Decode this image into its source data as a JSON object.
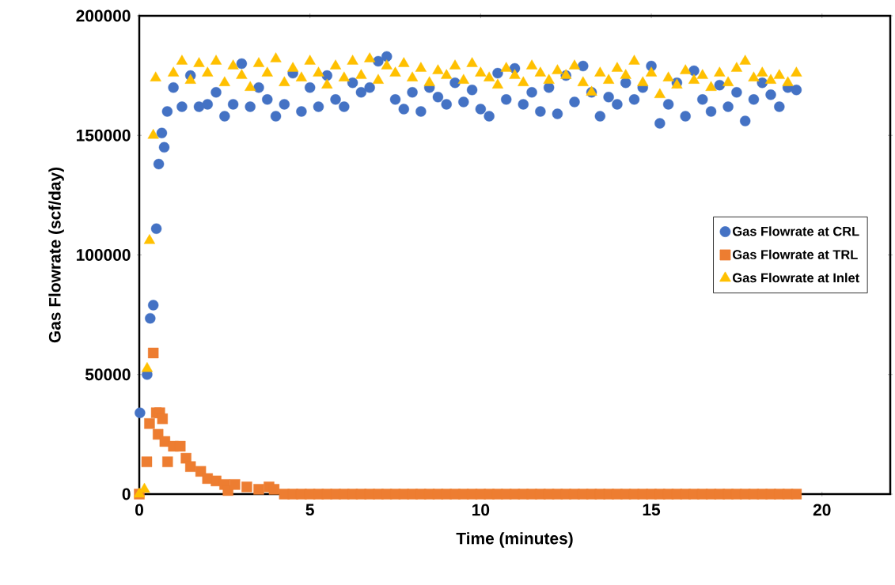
{
  "chart_data": {
    "type": "scatter",
    "xlabel": "Time (minutes)",
    "ylabel": "Gas Flowrate (scf/day)",
    "xlim": [
      0,
      22
    ],
    "ylim": [
      0,
      200000
    ],
    "xticks": [
      0,
      5,
      10,
      15,
      20
    ],
    "yticks": [
      0,
      50000,
      100000,
      150000,
      200000
    ],
    "legend": "right",
    "grid": false,
    "series": [
      {
        "name": "Gas Flowrate at CRL",
        "color": "#4472c4",
        "marker": "circle",
        "x": [
          0.02,
          0.23,
          0.32,
          0.41,
          0.5,
          0.57,
          0.66,
          0.73,
          0.82,
          1.0,
          1.25,
          1.5,
          1.75,
          2.0,
          2.25,
          2.5,
          2.75,
          3.0,
          3.25,
          3.5,
          3.75,
          4.0,
          4.25,
          4.5,
          4.75,
          5.0,
          5.25,
          5.5,
          5.75,
          6.0,
          6.25,
          6.5,
          6.75,
          7.0,
          7.25,
          7.5,
          7.75,
          8.0,
          8.25,
          8.5,
          8.75,
          9.0,
          9.25,
          9.5,
          9.75,
          10.0,
          10.25,
          10.5,
          10.75,
          11.0,
          11.25,
          11.5,
          11.75,
          12.0,
          12.25,
          12.5,
          12.75,
          13.0,
          13.25,
          13.5,
          13.75,
          14.0,
          14.25,
          14.5,
          14.75,
          15.0,
          15.25,
          15.5,
          15.75,
          16.0,
          16.25,
          16.5,
          16.75,
          17.0,
          17.25,
          17.5,
          17.75,
          18.0,
          18.25,
          18.5,
          18.75,
          19.0,
          19.25
        ],
        "values": [
          34000,
          50000,
          73500,
          79000,
          111000,
          138000,
          151000,
          145000,
          160000,
          170000,
          162000,
          175000,
          162000,
          163000,
          168000,
          158000,
          163000,
          180000,
          162000,
          170000,
          165000,
          158000,
          163000,
          176000,
          160000,
          170000,
          162000,
          175000,
          165000,
          162000,
          172000,
          168000,
          170000,
          181000,
          183000,
          165000,
          161000,
          168000,
          160000,
          170000,
          166000,
          163000,
          172000,
          164000,
          169000,
          161000,
          158000,
          176000,
          165000,
          178000,
          163000,
          168000,
          160000,
          170000,
          159000,
          175000,
          164000,
          179000,
          168000,
          158000,
          166000,
          163000,
          172000,
          165000,
          170000,
          179000,
          155000,
          163000,
          172000,
          158000,
          177000,
          165000,
          160000,
          171000,
          162000,
          168000,
          156000,
          165000,
          172000,
          167000,
          162000,
          170000,
          169000
        ]
      },
      {
        "name": "Gas Flowrate at TRL",
        "color": "#ed7d31",
        "marker": "square",
        "x": [
          0.0,
          0.22,
          0.3,
          0.41,
          0.5,
          0.55,
          0.6,
          0.68,
          0.75,
          0.83,
          1.0,
          1.2,
          1.37,
          1.5,
          1.8,
          2.0,
          2.25,
          2.5,
          2.6,
          2.8,
          3.15,
          3.5,
          3.8,
          3.95,
          4.25,
          4.5,
          4.75,
          5.0,
          5.25,
          5.5,
          5.75,
          6.0,
          6.25,
          6.5,
          6.75,
          7.0,
          7.25,
          7.5,
          7.75,
          8.0,
          8.25,
          8.5,
          8.75,
          9.0,
          9.25,
          9.5,
          9.75,
          10.0,
          10.25,
          10.5,
          10.75,
          11.0,
          11.25,
          11.5,
          11.75,
          12.0,
          12.25,
          12.5,
          12.75,
          13.0,
          13.25,
          13.5,
          13.75,
          14.0,
          14.25,
          14.5,
          14.75,
          15.0,
          15.25,
          15.5,
          15.75,
          16.0,
          16.25,
          16.5,
          16.75,
          17.0,
          17.25,
          17.5,
          17.75,
          18.0,
          18.25,
          18.5,
          18.75,
          19.0,
          19.25
        ],
        "values": [
          0,
          13500,
          29500,
          59000,
          34000,
          25000,
          34000,
          31500,
          22000,
          13500,
          20000,
          20000,
          15000,
          11500,
          9500,
          6500,
          5500,
          4000,
          1500,
          4000,
          3000,
          2000,
          3000,
          2000,
          0,
          0,
          0,
          0,
          0,
          0,
          0,
          0,
          0,
          0,
          0,
          0,
          0,
          0,
          0,
          0,
          0,
          0,
          0,
          0,
          0,
          0,
          0,
          0,
          0,
          0,
          0,
          0,
          0,
          0,
          0,
          0,
          0,
          0,
          0,
          0,
          0,
          0,
          0,
          0,
          0,
          0,
          0,
          0,
          0,
          0,
          0,
          0,
          0,
          0,
          0,
          0,
          0,
          0,
          0,
          0,
          0,
          0,
          0,
          0,
          0
        ]
      },
      {
        "name": "Gas Flowrate at Inlet",
        "color": "#ffc000",
        "marker": "triangle",
        "x": [
          0.0,
          0.15,
          0.23,
          0.3,
          0.41,
          0.48,
          1.0,
          1.25,
          1.5,
          1.75,
          2.0,
          2.25,
          2.5,
          2.75,
          3.0,
          3.25,
          3.5,
          3.75,
          4.0,
          4.25,
          4.5,
          4.75,
          5.0,
          5.25,
          5.5,
          5.75,
          6.0,
          6.25,
          6.5,
          6.75,
          7.0,
          7.25,
          7.5,
          7.75,
          8.0,
          8.25,
          8.5,
          8.75,
          9.0,
          9.25,
          9.5,
          9.75,
          10.0,
          10.25,
          10.5,
          10.75,
          11.0,
          11.25,
          11.5,
          11.75,
          12.0,
          12.25,
          12.5,
          12.75,
          13.0,
          13.25,
          13.5,
          13.75,
          14.0,
          14.25,
          14.5,
          14.75,
          15.0,
          15.25,
          15.5,
          15.75,
          16.0,
          16.25,
          16.5,
          16.75,
          17.0,
          17.25,
          17.5,
          17.75,
          18.0,
          18.25,
          18.5,
          18.75,
          19.0,
          19.25
        ],
        "values": [
          0,
          2000,
          52500,
          106000,
          150000,
          174000,
          176000,
          181000,
          173000,
          180000,
          176000,
          181000,
          172000,
          179000,
          175000,
          170000,
          180000,
          176000,
          182000,
          172000,
          178000,
          174000,
          181000,
          176000,
          171000,
          179000,
          174000,
          181000,
          175000,
          182000,
          173000,
          179000,
          176000,
          180000,
          174000,
          178000,
          172000,
          177000,
          175000,
          179000,
          173000,
          180000,
          176000,
          174000,
          171000,
          178000,
          175000,
          172000,
          179000,
          176000,
          173000,
          177000,
          175000,
          179000,
          172000,
          168000,
          176000,
          173000,
          178000,
          175000,
          181000,
          172000,
          176000,
          167000,
          174000,
          171000,
          177000,
          173000,
          175000,
          170000,
          176000,
          172000,
          178000,
          181000,
          174000,
          176000,
          173000,
          175000,
          172000,
          176000
        ]
      }
    ]
  }
}
